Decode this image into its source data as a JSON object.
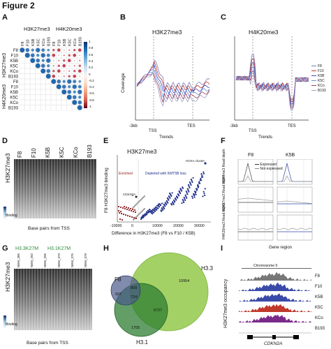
{
  "figure": {
    "title": "Figure 2"
  },
  "panels": {
    "A": {
      "letter": "A",
      "group_labels": [
        "H3K27me3",
        "H4K20me3"
      ],
      "samples": [
        "F8",
        "F10",
        "K5B",
        "K5C",
        "KCo",
        "B193"
      ],
      "scale_ticks": [
        "1",
        "0.8",
        "0.6",
        "0.4",
        "0.2",
        "0",
        "-0.2",
        "-0.4",
        "-0.6",
        "-0.8",
        "-1"
      ]
    },
    "B": {
      "letter": "B",
      "title": "H3K27me3",
      "ylabel": "Coverage",
      "xticks": [
        "-3kb",
        "TSS",
        "TES"
      ],
      "xlabel": "Trends"
    },
    "C": {
      "letter": "C",
      "title": "H4K20me3",
      "xticks": [
        "-3kb",
        "TSS",
        "TES"
      ],
      "xlabel": "Trends",
      "legend": [
        "F8",
        "F10",
        "K5B",
        "K5C",
        "KCo",
        "B193"
      ]
    },
    "D": {
      "letter": "D",
      "ylabel": "H3K27me3",
      "columns": [
        "F8",
        "F10",
        "K5B",
        "K5C",
        "KCo",
        "B193"
      ],
      "colorbar_label": "Binding",
      "xlabel": "Base pairs from TSS"
    },
    "E": {
      "letter": "E",
      "title": "H3K27me3",
      "ylabel": "F8 H3K27me3 binding",
      "xlabel": "Difference in H3K27me3 (F8 vs F10 / K5B)",
      "xticks": [
        "-10000",
        "0",
        "10000",
        "20000",
        "30000"
      ],
      "enriched": "Enriched",
      "depleted": "Depleted with KMT5B loss",
      "hoxa": "HOXA cluster",
      "cdkn2a": "CDKN2A"
    },
    "F": {
      "letter": "F",
      "samples": [
        "F8",
        "K5B"
      ],
      "row_labels": [
        "H3K4me3 Read depth",
        "H3K27me3 Read depth",
        "H4K20me3 Read depth"
      ],
      "legend": [
        "Expressed",
        "Not expressed"
      ],
      "xlabel": "Gene region"
    },
    "G": {
      "letter": "G",
      "headers": [
        "H3.3K27M",
        "H3.1K27M"
      ],
      "ylabel": "H3K27me3",
      "columns": [
        "NEM_285",
        "NEM_292",
        "NEM_295",
        "NEM_373",
        "NEM_375",
        "NEM_379"
      ],
      "colorbar_label": "Binding",
      "xlabel": "Base pairs from TSS"
    },
    "H": {
      "letter": "H",
      "sets": [
        "F8",
        "H3.3",
        "H3.1"
      ],
      "counts": [
        "10954",
        "927",
        "809",
        "724",
        "6727",
        "1705"
      ]
    },
    "I": {
      "letter": "I",
      "ylabel": "H3K27me3 occupancy",
      "chromosome": "Chromosome 9",
      "tracks": [
        "F8",
        "F10",
        "K5B",
        "K5C",
        "KCo",
        "B193"
      ],
      "gene": "CDKN2A"
    }
  },
  "colors": {
    "positive": "#2166ac",
    "negative": "#b2182b",
    "venn_h33": "#8dc63f",
    "venn_h31": "#2e7d32",
    "venn_f8": "#4a5a8a",
    "g_header": "#2e8b3d"
  }
}
